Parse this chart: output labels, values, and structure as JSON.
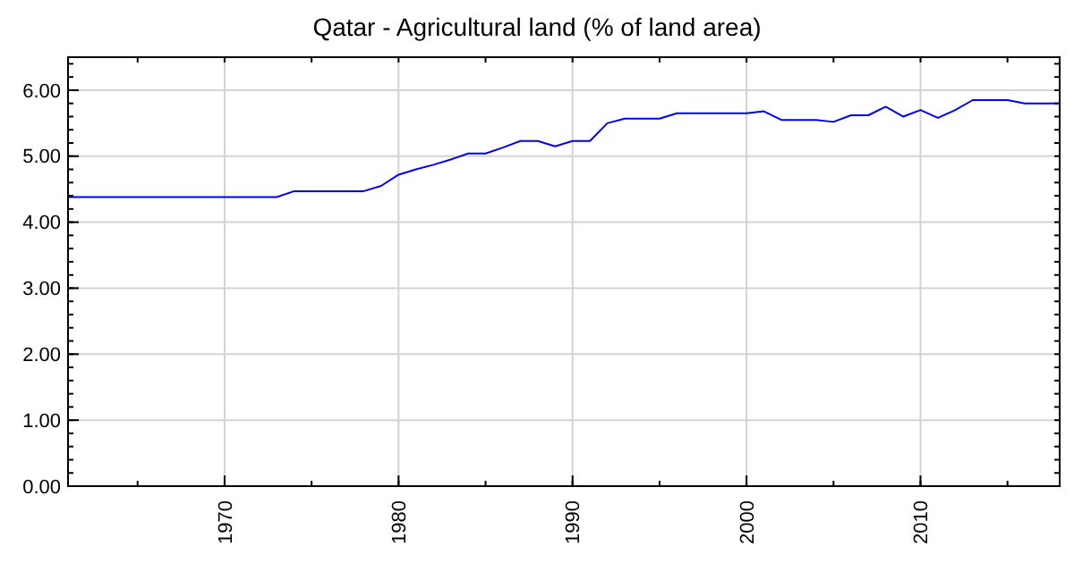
{
  "chart_data": {
    "type": "line",
    "title": "Qatar - Agricultural land (% of land area)",
    "x": [
      1961,
      1962,
      1963,
      1964,
      1965,
      1966,
      1967,
      1968,
      1969,
      1970,
      1971,
      1972,
      1973,
      1974,
      1975,
      1976,
      1977,
      1978,
      1979,
      1980,
      1981,
      1982,
      1983,
      1984,
      1985,
      1986,
      1987,
      1988,
      1989,
      1990,
      1991,
      1992,
      1993,
      1994,
      1995,
      1996,
      1997,
      1998,
      1999,
      2000,
      2001,
      2002,
      2003,
      2004,
      2005,
      2006,
      2007,
      2008,
      2009,
      2010,
      2011,
      2012,
      2013,
      2014,
      2015,
      2016,
      2017,
      2018
    ],
    "series": [
      {
        "color": "#0000ff",
        "values": [
          4.38,
          4.38,
          4.38,
          4.38,
          4.38,
          4.38,
          4.38,
          4.38,
          4.38,
          4.38,
          4.38,
          4.38,
          4.38,
          4.47,
          4.47,
          4.47,
          4.47,
          4.47,
          4.55,
          4.72,
          4.8,
          4.87,
          4.95,
          5.04,
          5.04,
          5.13,
          5.23,
          5.23,
          5.15,
          5.23,
          5.23,
          5.5,
          5.57,
          5.57,
          5.57,
          5.65,
          5.65,
          5.65,
          5.65,
          5.65,
          5.68,
          5.55,
          5.55,
          5.55,
          5.52,
          5.62,
          5.62,
          5.75,
          5.6,
          5.7,
          5.58,
          5.7,
          5.85,
          5.85,
          5.85,
          5.8,
          5.8,
          5.8
        ]
      }
    ],
    "xlim": [
      1961,
      2018
    ],
    "xticks": [
      1970,
      1980,
      1990,
      2000,
      2010
    ],
    "ylim": [
      0,
      6.5
    ],
    "yticks": [
      {
        "value": 0,
        "label": "0.00"
      },
      {
        "value": 1,
        "label": "1.00"
      },
      {
        "value": 2,
        "label": "2.00"
      },
      {
        "value": 3,
        "label": "3.00"
      },
      {
        "value": 4,
        "label": "4.00"
      },
      {
        "value": 5,
        "label": "5.00"
      },
      {
        "value": 6,
        "label": "6.00"
      }
    ],
    "grid": true
  }
}
